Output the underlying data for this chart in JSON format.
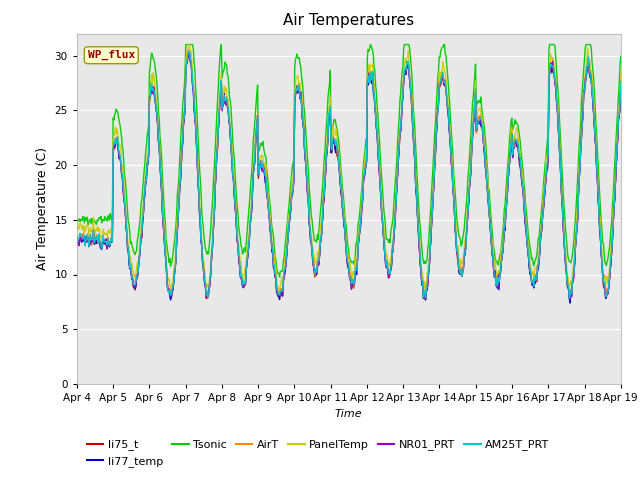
{
  "title": "Air Temperatures",
  "xlabel": "Time",
  "ylabel": "Air Temperature (C)",
  "ylim": [
    0,
    32
  ],
  "yticks": [
    0,
    5,
    10,
    15,
    20,
    25,
    30
  ],
  "x_labels": [
    "Apr 4",
    "Apr 5",
    "Apr 6",
    "Apr 7",
    "Apr 8",
    "Apr 9",
    "Apr 10",
    "Apr 11",
    "Apr 12",
    "Apr 13",
    "Apr 14",
    "Apr 15",
    "Apr 16",
    "Apr 17",
    "Apr 18",
    "Apr 19"
  ],
  "series_order": [
    "li75_t",
    "li77_temp",
    "Tsonic",
    "AirT",
    "PanelTemp",
    "NR01_PRT",
    "AM25T_PRT"
  ],
  "series": {
    "li75_t": {
      "color": "#cc0000",
      "lw": 0.9
    },
    "li77_temp": {
      "color": "#0000cc",
      "lw": 0.9
    },
    "Tsonic": {
      "color": "#00cc00",
      "lw": 1.0
    },
    "AirT": {
      "color": "#ff8800",
      "lw": 0.9
    },
    "PanelTemp": {
      "color": "#cccc00",
      "lw": 0.9
    },
    "NR01_PRT": {
      "color": "#9900cc",
      "lw": 0.9
    },
    "AM25T_PRT": {
      "color": "#00cccc",
      "lw": 1.0
    }
  },
  "annotation_text": "WP_flux",
  "bg_color": "#e8e8e8",
  "fig_color": "#ffffff",
  "daily_mins": [
    13,
    9,
    8,
    8,
    9,
    8,
    10,
    9,
    10,
    8,
    10,
    9,
    9,
    8,
    8
  ],
  "daily_maxs": [
    13,
    22,
    27,
    30,
    26,
    20,
    27,
    22,
    28,
    29,
    28,
    24,
    22,
    29,
    29
  ],
  "tsonic_extra": [
    2,
    3,
    3,
    4,
    3,
    2,
    3,
    2,
    3,
    3,
    3,
    2,
    2,
    3,
    3
  ]
}
